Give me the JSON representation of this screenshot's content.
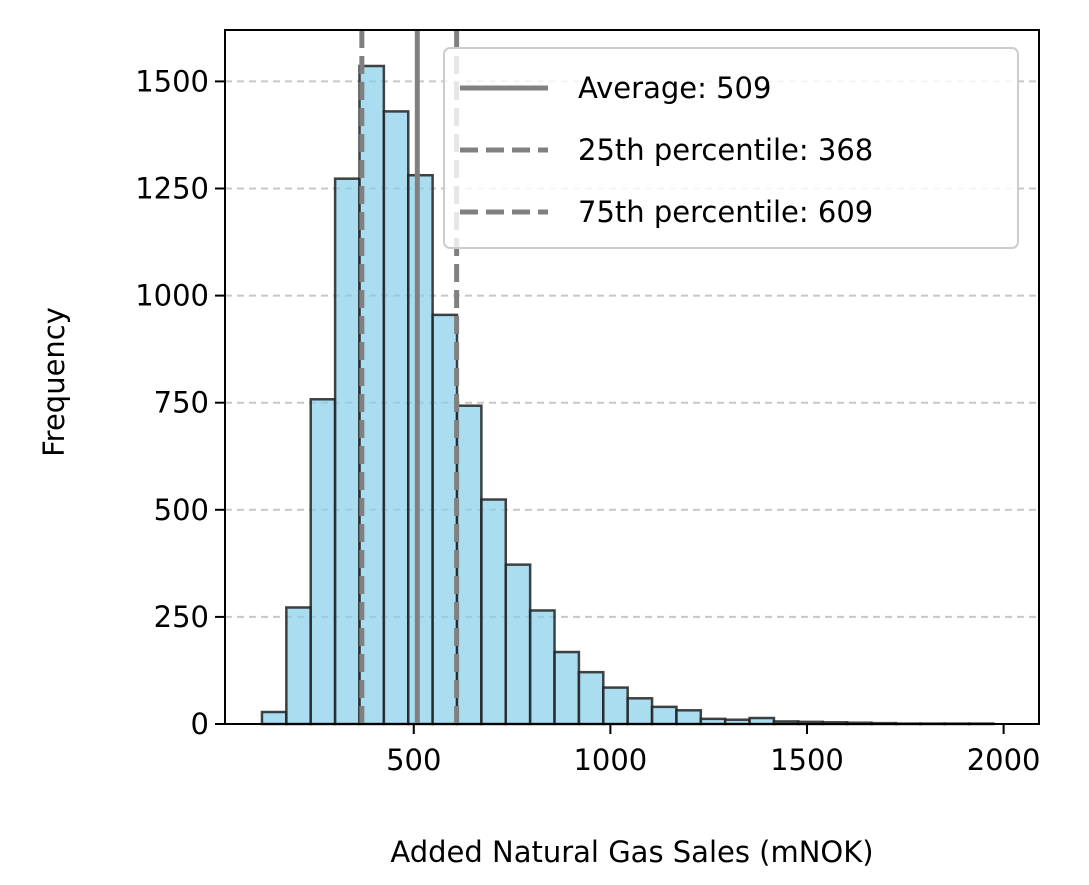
{
  "chart_data": {
    "type": "bar",
    "subtype": "histogram",
    "title": "",
    "xlabel": "Added Natural Gas Sales (mNOK)",
    "ylabel": "Frequency",
    "xlim": [
      20,
      2090
    ],
    "ylim": [
      0,
      1620
    ],
    "x_ticks": [
      500,
      1000,
      1500,
      2000
    ],
    "y_ticks": [
      0,
      250,
      500,
      750,
      1000,
      1250,
      1500
    ],
    "grid": {
      "axis": "y",
      "style": "dashed",
      "color": "#c8c8c8"
    },
    "bar_color": "#87CEEB",
    "bar_edge_color": "#222222",
    "bin_width": 62,
    "bins": [
      {
        "start": 114,
        "end": 176,
        "value": 28
      },
      {
        "start": 176,
        "end": 238,
        "value": 272
      },
      {
        "start": 238,
        "end": 300,
        "value": 758
      },
      {
        "start": 300,
        "end": 362,
        "value": 1273
      },
      {
        "start": 362,
        "end": 424,
        "value": 1536
      },
      {
        "start": 424,
        "end": 486,
        "value": 1430
      },
      {
        "start": 486,
        "end": 548,
        "value": 1281
      },
      {
        "start": 548,
        "end": 610,
        "value": 955
      },
      {
        "start": 610,
        "end": 672,
        "value": 743
      },
      {
        "start": 672,
        "end": 734,
        "value": 524
      },
      {
        "start": 734,
        "end": 796,
        "value": 372
      },
      {
        "start": 796,
        "end": 858,
        "value": 265
      },
      {
        "start": 858,
        "end": 920,
        "value": 168
      },
      {
        "start": 920,
        "end": 982,
        "value": 121
      },
      {
        "start": 982,
        "end": 1044,
        "value": 85
      },
      {
        "start": 1044,
        "end": 1106,
        "value": 60
      },
      {
        "start": 1106,
        "end": 1168,
        "value": 40
      },
      {
        "start": 1168,
        "end": 1230,
        "value": 32
      },
      {
        "start": 1230,
        "end": 1292,
        "value": 12
      },
      {
        "start": 1292,
        "end": 1354,
        "value": 10
      },
      {
        "start": 1354,
        "end": 1416,
        "value": 14
      },
      {
        "start": 1416,
        "end": 1478,
        "value": 6
      },
      {
        "start": 1478,
        "end": 1540,
        "value": 5
      },
      {
        "start": 1540,
        "end": 1602,
        "value": 4
      },
      {
        "start": 1602,
        "end": 1664,
        "value": 3
      },
      {
        "start": 1664,
        "end": 1726,
        "value": 2
      },
      {
        "start": 1726,
        "end": 1788,
        "value": 1
      },
      {
        "start": 1788,
        "end": 1850,
        "value": 1
      },
      {
        "start": 1850,
        "end": 1912,
        "value": 1
      },
      {
        "start": 1912,
        "end": 1974,
        "value": 1
      }
    ],
    "reference_lines": [
      {
        "label": "Average: 509",
        "value": 509,
        "style": "solid",
        "color": "#808080"
      },
      {
        "label": "25th percentile: 368",
        "value": 368,
        "style": "dashed",
        "color": "#808080"
      },
      {
        "label": "75th percentile: 609",
        "value": 609,
        "style": "dashed",
        "color": "#808080"
      }
    ],
    "legend_position": "top-right"
  }
}
